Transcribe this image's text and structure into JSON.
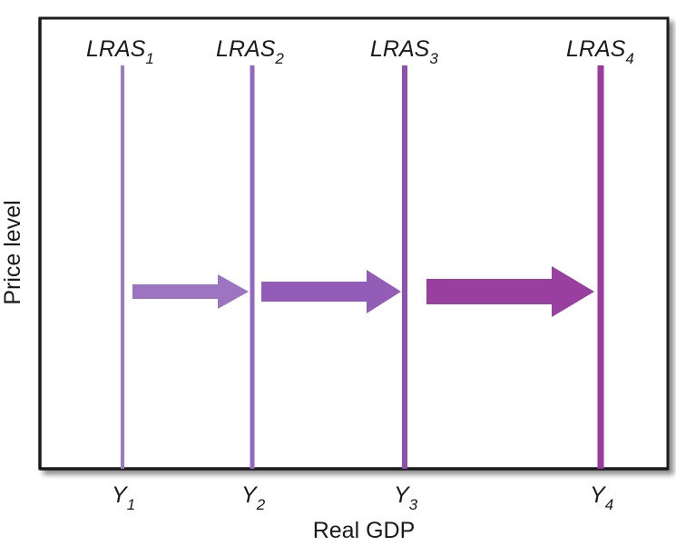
{
  "diagram": {
    "y_axis_label": "Price level",
    "x_axis_label": "Real GDP",
    "curves": [
      {
        "name": "LRAS",
        "subscript": "1",
        "tick": "Y",
        "tick_subscript": "1",
        "color": "#9b7cc4"
      },
      {
        "name": "LRAS",
        "subscript": "2",
        "tick": "Y",
        "tick_subscript": "2",
        "color": "#9468c0"
      },
      {
        "name": "LRAS",
        "subscript": "3",
        "tick": "Y",
        "tick_subscript": "3",
        "color": "#914fb3"
      },
      {
        "name": "LRAS",
        "subscript": "4",
        "tick": "Y",
        "tick_subscript": "4",
        "color": "#9a3a9e"
      }
    ],
    "arrows": [
      {
        "from": "LRAS1",
        "to": "LRAS2",
        "color": "#9c74c2"
      },
      {
        "from": "LRAS2",
        "to": "LRAS3",
        "color": "#935cb7"
      },
      {
        "from": "LRAS3",
        "to": "LRAS4",
        "color": "#983f9f"
      }
    ],
    "colors": {
      "panel_border": "#1a1a1a",
      "panel_fill": "#ffffff",
      "text": "#1a1a1a"
    }
  }
}
